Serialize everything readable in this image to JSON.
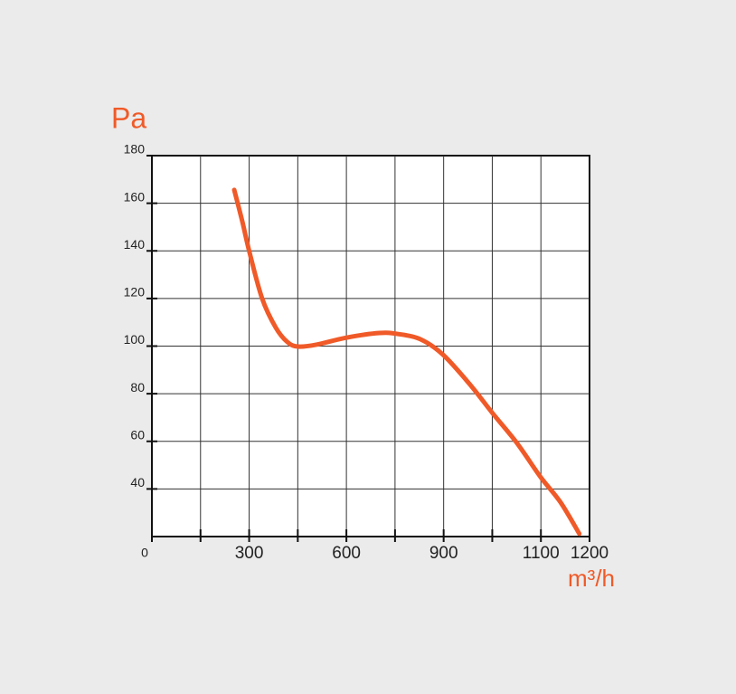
{
  "chart_data": {
    "type": "line",
    "y_label": "Pa",
    "x_label": "m³/h",
    "x": [
      254,
      279,
      300,
      340,
      382,
      418,
      451,
      507,
      602,
      702,
      758,
      828,
      898,
      954,
      1001,
      1051,
      1099,
      1140,
      1179
    ],
    "series": [
      {
        "color": "#f05a28",
        "values": [
          165.6,
          152.3,
          140,
          120,
          107.8,
          101.7,
          99.8,
          100.6,
          103.6,
          105.5,
          105.1,
          102.9,
          96.4,
          83.9,
          71.7,
          59.2,
          45.1,
          34.5,
          21.2
        ]
      }
    ],
    "xticks": [
      0,
      300,
      600,
      900,
      1100,
      1200
    ],
    "ylim": [
      20,
      180
    ],
    "yticks": [
      40,
      60,
      80,
      100,
      120,
      140,
      160,
      180
    ],
    "grid": true
  }
}
